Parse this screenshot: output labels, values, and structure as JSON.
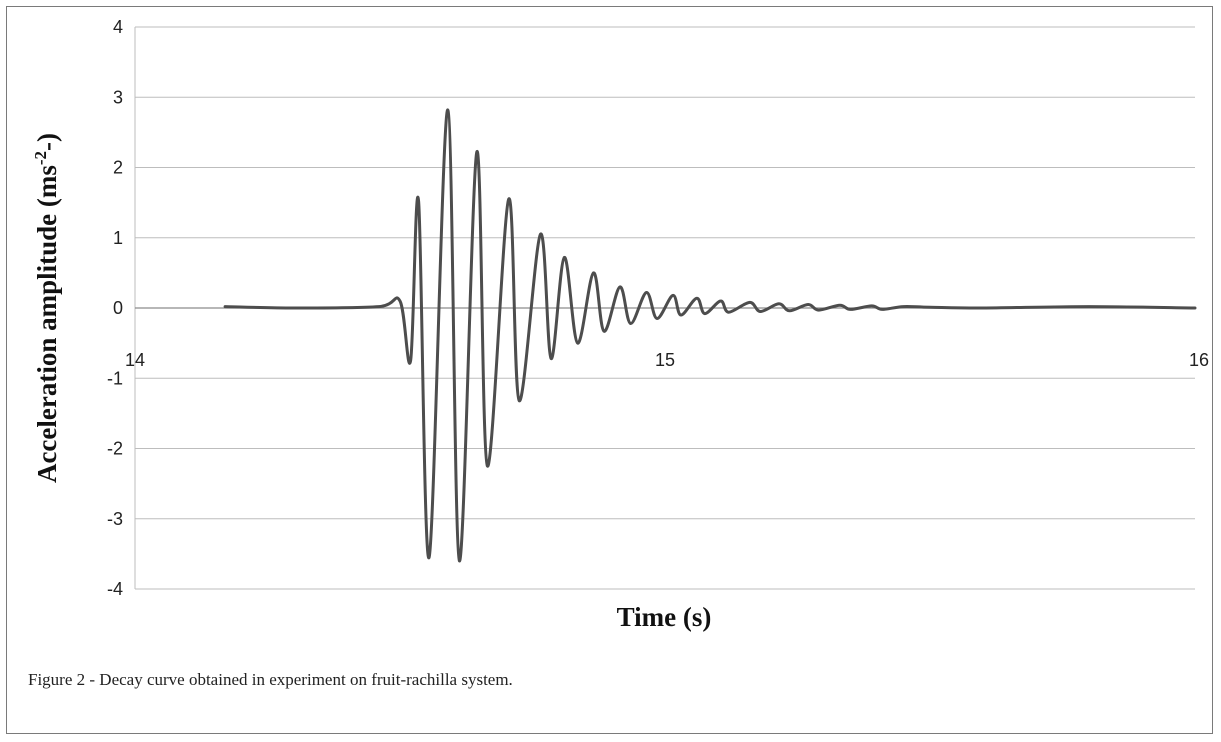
{
  "chart_data": {
    "type": "line",
    "xlabel": "Time (s)",
    "ylabel_main": "Acceleration amplitude (ms",
    "ylabel_sup": "-2",
    "ylabel_end": "-)",
    "xlim": [
      14,
      16
    ],
    "ylim": [
      -4,
      4
    ],
    "x_ticks": [
      14,
      15,
      16
    ],
    "y_ticks": [
      4,
      3,
      2,
      1,
      0,
      -1,
      -2,
      -3,
      -4
    ],
    "grid": "horizontal",
    "series_color": "#4d4d4d",
    "x": [
      14.17,
      14.3,
      14.46,
      14.5,
      14.52,
      14.535,
      14.555,
      14.59,
      14.612,
      14.645,
      14.665,
      14.705,
      14.725,
      14.765,
      14.785,
      14.81,
      14.835,
      14.865,
      14.885,
      14.915,
      14.935,
      14.965,
      14.985,
      15.015,
      15.03,
      15.06,
      15.075,
      15.105,
      15.12,
      15.16,
      15.18,
      15.215,
      15.235,
      15.27,
      15.29,
      15.33,
      15.35,
      15.39,
      15.41,
      15.45,
      15.5,
      15.6,
      15.8,
      16.0
    ],
    "y": [
      0.02,
      0.0,
      0.02,
      0.1,
      -0.75,
      1.52,
      -3.55,
      2.82,
      -3.6,
      2.22,
      -2.25,
      1.55,
      -1.32,
      1.05,
      -0.72,
      0.72,
      -0.5,
      0.5,
      -0.33,
      0.3,
      -0.22,
      0.22,
      -0.15,
      0.18,
      -0.1,
      0.14,
      -0.08,
      0.1,
      -0.06,
      0.08,
      -0.05,
      0.06,
      -0.04,
      0.05,
      -0.03,
      0.04,
      -0.02,
      0.03,
      -0.02,
      0.02,
      0.01,
      0.0,
      0.02,
      0.0
    ]
  },
  "caption": "Figure 2 - Decay curve obtained in experiment on fruit-rachilla system."
}
